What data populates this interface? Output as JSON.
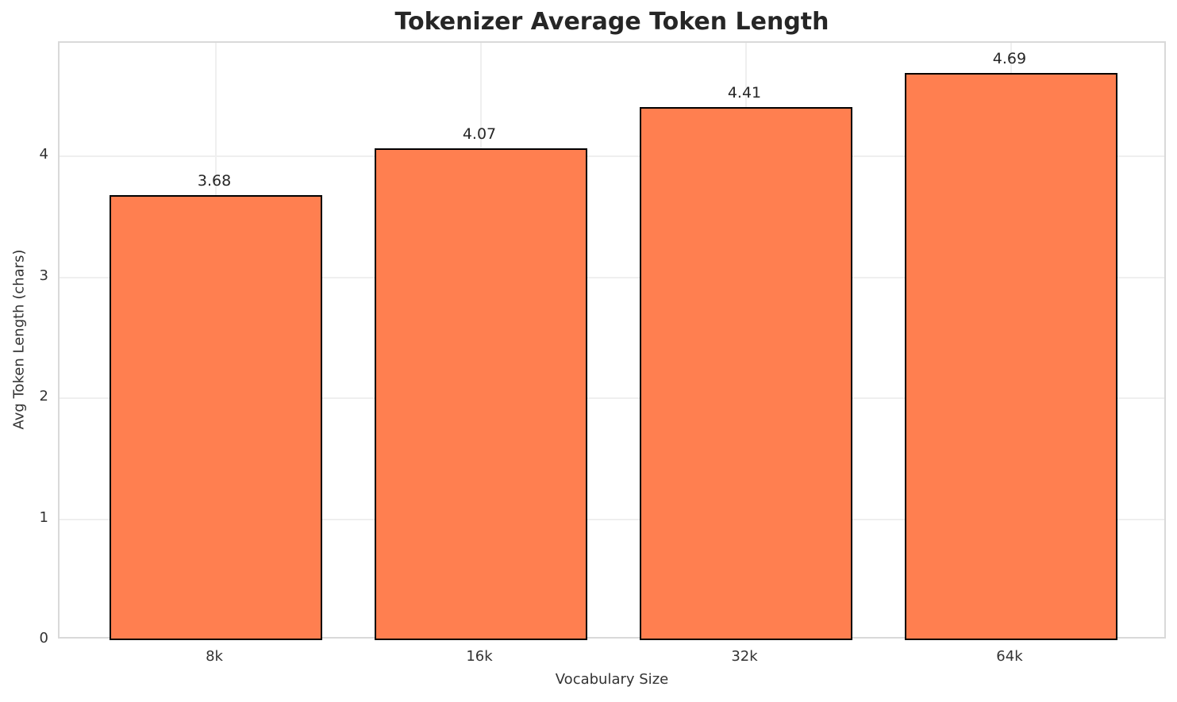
{
  "figure": {
    "background_color": "#ffffff"
  },
  "chart_data": {
    "type": "bar",
    "title": "Tokenizer Average Token Length",
    "xlabel": "Vocabulary Size",
    "ylabel": "Avg Token Length (chars)",
    "categories": [
      "8k",
      "16k",
      "32k",
      "64k"
    ],
    "values": [
      3.68,
      4.07,
      4.41,
      4.69
    ],
    "value_labels": [
      "3.68",
      "4.07",
      "4.41",
      "4.69"
    ],
    "yticks": [
      0,
      1,
      2,
      3,
      4
    ],
    "ytick_labels": [
      "0",
      "1",
      "2",
      "3",
      "4"
    ],
    "ylim": [
      0,
      4.94
    ],
    "xlim": [
      -0.59,
      3.59
    ],
    "bar_width": 0.8,
    "grid": true,
    "legend": false,
    "bar_color": "#FF7F50",
    "bar_edge_color": "#000000",
    "grid_color": "#efefef",
    "spine_color": "#d9d9d9",
    "title_color": "#262626",
    "tick_label_color": "#333333",
    "value_label_color": "#262626"
  }
}
